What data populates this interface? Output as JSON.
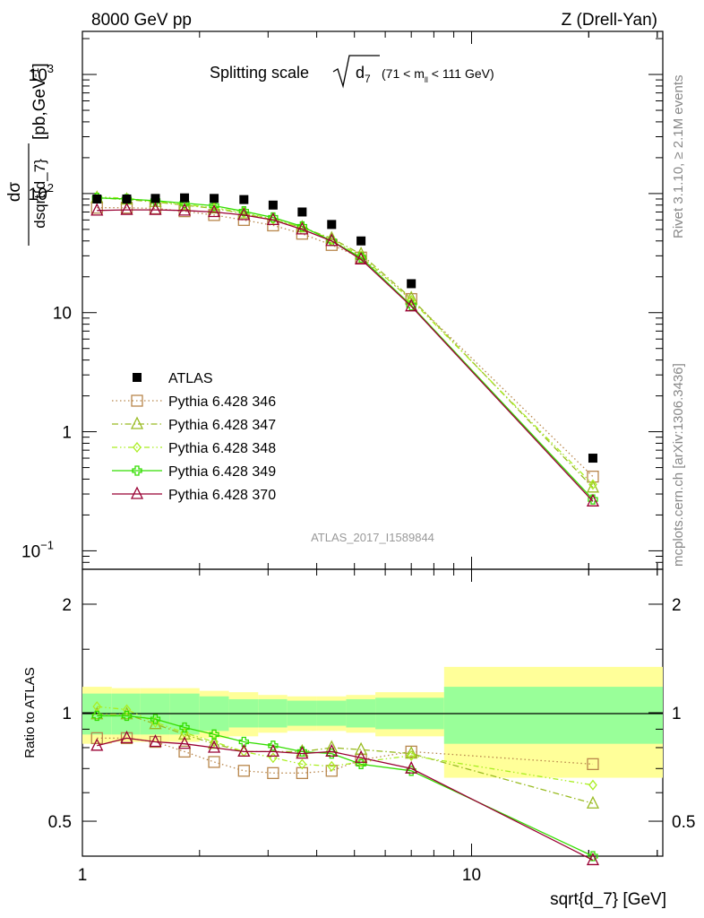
{
  "header": {
    "left": "8000 GeV pp",
    "right": "Z (Drell-Yan)"
  },
  "side_labels": {
    "rivet": "Rivet 3.1.10, ≥ 2.1M events",
    "mcplots": "mcplots.cern.ch [arXiv:1306.3436]"
  },
  "plot": {
    "title_main": "Splitting scale",
    "title_var": "d",
    "title_sub": "7",
    "title_range_a": "(71 < m",
    "title_range_sub": "ll",
    "title_range_b": " < 111 GeV)",
    "analysis_id": "ATLAS_2017_I1589844",
    "ylabel_num": "dσ",
    "ylabel_den": "dsqrt{d_7}",
    "ylabel_units_a": "[pb,GeV",
    "ylabel_units_sup": "-1",
    "ylabel_units_b": "]",
    "ratio_ylabel": "Ratio to ATLAS",
    "xlabel": "sqrt{d_7} [GeV]"
  },
  "ticks": {
    "main_y": [
      "10",
      "3",
      "10",
      "2",
      "10",
      "1",
      "10",
      "−1"
    ],
    "main_y_labels": [
      {
        "base": "10",
        "exp": "3"
      },
      {
        "base": "10",
        "exp": "2"
      },
      {
        "base": "10",
        "exp": ""
      },
      {
        "base": "1",
        "exp": ""
      },
      {
        "base": "10",
        "exp": "−1"
      }
    ],
    "ratio_y": [
      "2",
      "1",
      "0.5"
    ],
    "x": [
      "1",
      "10"
    ]
  },
  "chart_data": {
    "type": "scatter",
    "x_scale": "log",
    "y_scale": "log",
    "xlim": [
      1,
      31
    ],
    "ylim": [
      0.07,
      2300
    ],
    "ratio_ylim": [
      0.4,
      2.5
    ],
    "ratio_y_scale": "log",
    "x_bin_edges": [
      1.0,
      1.19,
      1.41,
      1.68,
      2.0,
      2.38,
      2.83,
      3.36,
      4.0,
      4.76,
      5.66,
      8.5,
      31.0
    ],
    "x": [
      1.09,
      1.3,
      1.54,
      1.83,
      2.18,
      2.6,
      3.09,
      3.67,
      4.37,
      5.2,
      7.0,
      20.5
    ],
    "series": [
      {
        "name": "ATLAS",
        "color": "#000000",
        "marker": "filled-square",
        "values": [
          90,
          90,
          91,
          92,
          91,
          89,
          80,
          70,
          55,
          40,
          17.5,
          0.6
        ],
        "ratio": [
          1,
          1,
          1,
          1,
          1,
          1,
          1,
          1,
          1,
          1,
          1,
          1
        ],
        "band_inner": [
          0.13,
          0.13,
          0.13,
          0.13,
          0.11,
          0.09,
          0.09,
          0.08,
          0.08,
          0.09,
          0.1,
          0.18
        ],
        "band_outer": [
          0.18,
          0.17,
          0.17,
          0.17,
          0.15,
          0.14,
          0.12,
          0.11,
          0.11,
          0.12,
          0.14,
          0.34
        ]
      },
      {
        "name": "Pythia 6.428 346",
        "color": "#B8864B",
        "marker": "open-square",
        "dash": "1.5,3",
        "values": [
          76,
          76,
          75,
          71,
          66,
          60,
          54,
          46,
          37,
          29,
          13.0,
          0.42
        ],
        "ratio": [
          0.85,
          0.85,
          0.83,
          0.78,
          0.73,
          0.69,
          0.68,
          0.68,
          0.69,
          0.74,
          0.78,
          0.72
        ]
      },
      {
        "name": "Pythia 6.428 347",
        "color": "#99BB22",
        "marker": "open-triangle",
        "dash": "7,3,1.5,3",
        "values": [
          92,
          89,
          85,
          80,
          75,
          68,
          60,
          52,
          42,
          31,
          13.2,
          0.34
        ],
        "ratio": [
          0.99,
          0.99,
          0.93,
          0.87,
          0.82,
          0.78,
          0.78,
          0.78,
          0.8,
          0.79,
          0.77,
          0.56
        ]
      },
      {
        "name": "Pythia 6.428 348",
        "color": "#AAEE22",
        "marker": "open-diamond",
        "dash": "6,3,1.5,3,1.5,3",
        "values": [
          94,
          91,
          86,
          81,
          76,
          69,
          61,
          52,
          41,
          30,
          12.7,
          0.36
        ],
        "ratio": [
          1.04,
          1.02,
          0.94,
          0.88,
          0.83,
          0.78,
          0.75,
          0.72,
          0.71,
          0.73,
          0.76,
          0.63
        ]
      },
      {
        "name": "Pythia 6.428 349",
        "color": "#33DD00",
        "marker": "open-cross",
        "dash": "",
        "values": [
          92,
          90,
          87,
          83,
          79,
          71,
          63,
          53,
          40,
          29,
          11.5,
          0.27
        ],
        "ratio": [
          0.98,
          0.98,
          0.96,
          0.91,
          0.87,
          0.83,
          0.81,
          0.78,
          0.77,
          0.72,
          0.69,
          0.4
        ]
      },
      {
        "name": "Pythia 6.428 370",
        "color": "#990033",
        "marker": "open-triangle",
        "dash": "",
        "values": [
          72,
          73,
          73,
          72,
          70,
          66,
          60,
          50,
          40,
          28,
          11.3,
          0.26
        ],
        "ratio": [
          0.81,
          0.85,
          0.83,
          0.82,
          0.8,
          0.78,
          0.78,
          0.77,
          0.78,
          0.75,
          0.7,
          0.39
        ]
      }
    ],
    "legend_position": "middle-left"
  }
}
